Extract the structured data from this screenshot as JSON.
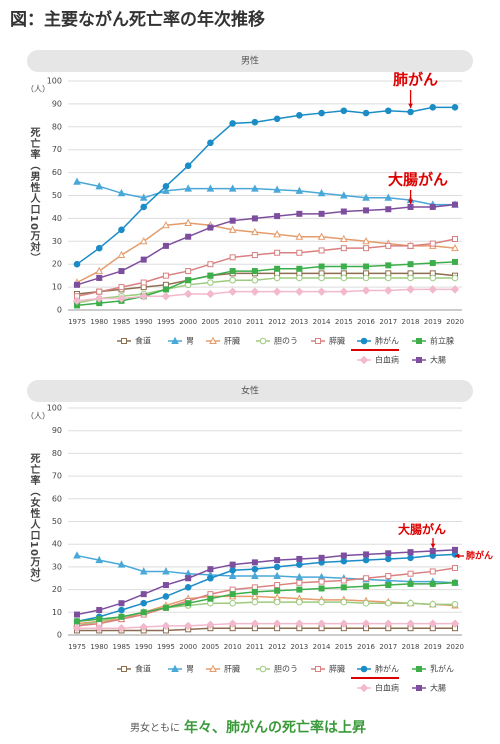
{
  "title": "図：主要ながん死亡率の年次推移",
  "footer": [
    "男女ともに",
    "年々、肺がんの死亡率は上昇"
  ],
  "chart_data": [
    {
      "type": "line",
      "title": "男性",
      "y_unit": "（人）",
      "y_label": "死亡率（男性人口10万対）",
      "categories": [
        "1975",
        "1980",
        "1985",
        "1990",
        "1995",
        "2000",
        "2005",
        "2010",
        "2011",
        "2012",
        "2013",
        "2014",
        "2015",
        "2016",
        "2017",
        "2018",
        "2019",
        "2020"
      ],
      "ylim": [
        0,
        100
      ],
      "yticks": [
        0,
        10,
        20,
        30,
        40,
        50,
        60,
        70,
        80,
        90,
        100
      ],
      "grid": true,
      "annotations": [
        "肺がん",
        "大腸がん"
      ],
      "series": [
        {
          "name": "食道",
          "color": "#8c6d4f",
          "marker": "square-open",
          "values": [
            7,
            8,
            9,
            10,
            11,
            13,
            15,
            16,
            16,
            16,
            16,
            16,
            16,
            16,
            16,
            16,
            16,
            15
          ]
        },
        {
          "name": "胃",
          "color": "#4aa8d8",
          "marker": "triangle",
          "values": [
            56,
            54,
            51,
            49,
            52,
            53,
            53,
            53,
            53,
            52.5,
            52,
            51,
            50,
            49,
            49,
            48,
            46,
            46
          ]
        },
        {
          "name": "肝臓",
          "color": "#e59b6a",
          "marker": "triangle-open",
          "values": [
            12,
            17,
            24,
            30,
            37,
            38,
            37,
            35,
            34,
            33,
            32,
            32,
            31,
            30,
            29,
            28,
            28,
            27
          ]
        },
        {
          "name": "胆のう",
          "color": "#9ccb7e",
          "marker": "circle-open",
          "values": [
            3,
            5,
            6,
            7,
            9,
            11,
            12,
            13,
            13,
            14,
            14,
            14,
            14,
            14,
            14,
            14,
            14,
            14
          ]
        },
        {
          "name": "膵臓",
          "color": "#d98080",
          "marker": "square-open",
          "values": [
            6,
            8,
            10,
            12,
            15,
            17,
            20,
            23,
            24,
            25,
            25,
            26,
            27,
            27,
            28,
            28,
            29,
            31
          ]
        },
        {
          "name": "肺がん",
          "color": "#1b8cc6",
          "marker": "circle",
          "values": [
            20,
            27,
            35,
            45,
            54,
            63,
            73,
            81.5,
            82,
            83.5,
            85,
            86,
            87,
            86,
            87,
            86.5,
            88.5,
            88.5
          ]
        },
        {
          "name": "前立腺",
          "color": "#3cae4a",
          "marker": "square",
          "values": [
            2,
            3,
            4,
            6,
            9,
            13,
            15,
            17,
            17,
            18,
            18,
            19,
            19,
            19,
            19.5,
            20,
            20.5,
            21
          ]
        },
        {
          "name": "白血病",
          "color": "#f2b8cc",
          "marker": "diamond",
          "values": [
            4,
            5,
            5,
            6,
            6,
            7,
            7,
            8,
            8,
            8,
            8,
            8,
            8,
            8.5,
            8.5,
            9,
            9,
            9
          ]
        },
        {
          "name": "大腸",
          "color": "#7d4e9e",
          "marker": "square",
          "values": [
            11,
            14,
            17,
            22,
            28,
            32,
            36,
            39,
            40,
            41,
            42,
            42,
            43,
            43.5,
            44,
            45,
            45,
            46
          ]
        }
      ]
    },
    {
      "type": "line",
      "title": "女性",
      "y_unit": "（人）",
      "y_label": "死亡率（女性人口10万対）",
      "categories": [
        "1975",
        "1980",
        "1985",
        "1990",
        "1995",
        "2000",
        "2005",
        "2010",
        "2011",
        "2012",
        "2013",
        "2014",
        "2015",
        "2016",
        "2017",
        "2018",
        "2019",
        "2020"
      ],
      "ylim": [
        0,
        100
      ],
      "yticks": [
        0,
        10,
        20,
        30,
        40,
        50,
        60,
        70,
        80,
        90,
        100
      ],
      "grid": true,
      "annotations": [
        "大腸がん",
        "肺がん"
      ],
      "series": [
        {
          "name": "食道",
          "color": "#8c6d4f",
          "marker": "square-open",
          "values": [
            2,
            2,
            2,
            2,
            2,
            2.5,
            3,
            3,
            3,
            3,
            3,
            3,
            3,
            3,
            3,
            3,
            3,
            3
          ]
        },
        {
          "name": "胃",
          "color": "#4aa8d8",
          "marker": "triangle",
          "values": [
            35,
            33,
            31,
            28,
            28,
            27,
            26.5,
            26,
            26,
            26,
            25.5,
            25.5,
            25,
            24.5,
            24,
            23.5,
            23.5,
            23
          ]
        },
        {
          "name": "肝臓",
          "color": "#e59b6a",
          "marker": "triangle-open",
          "values": [
            5,
            6,
            7,
            10,
            13,
            16,
            17,
            17,
            17,
            16.5,
            16,
            15.5,
            15.5,
            15,
            14.5,
            14,
            13.5,
            13
          ]
        },
        {
          "name": "胆のう",
          "color": "#9ccb7e",
          "marker": "circle-open",
          "values": [
            4,
            6,
            8,
            10,
            12,
            13,
            14,
            14,
            14.5,
            14.5,
            14.5,
            14.5,
            14.5,
            14,
            14,
            14,
            13.5,
            13.5
          ]
        },
        {
          "name": "膵臓",
          "color": "#d98080",
          "marker": "square-open",
          "values": [
            4,
            5,
            7,
            9,
            12,
            15,
            18,
            20,
            21,
            22,
            23,
            23.5,
            24,
            25,
            26,
            27,
            28,
            29.5
          ]
        },
        {
          "name": "肺がん",
          "color": "#1b8cc6",
          "marker": "circle",
          "values": [
            6,
            8,
            11,
            14,
            17,
            21,
            25,
            28.5,
            29,
            30,
            31,
            32,
            32.5,
            33,
            33.5,
            34,
            35,
            35.5
          ]
        },
        {
          "name": "乳がん",
          "color": "#3cae4a",
          "marker": "square",
          "values": [
            6,
            7,
            8,
            10,
            12,
            14,
            16,
            18,
            19,
            19.5,
            20,
            20.5,
            21,
            21.5,
            22,
            22.5,
            22.5,
            23
          ]
        },
        {
          "name": "白血病",
          "color": "#f2b8cc",
          "marker": "diamond",
          "values": [
            3,
            3,
            3,
            3.5,
            4,
            4,
            4.5,
            5,
            5,
            5,
            5,
            5,
            5,
            5,
            5,
            5,
            5,
            5
          ]
        },
        {
          "name": "大腸",
          "color": "#7d4e9e",
          "marker": "square",
          "values": [
            9,
            11,
            14,
            18,
            22,
            25,
            29,
            31,
            32,
            33,
            33.5,
            34,
            35,
            35.5,
            36,
            36.5,
            37,
            37.5
          ]
        }
      ]
    }
  ]
}
